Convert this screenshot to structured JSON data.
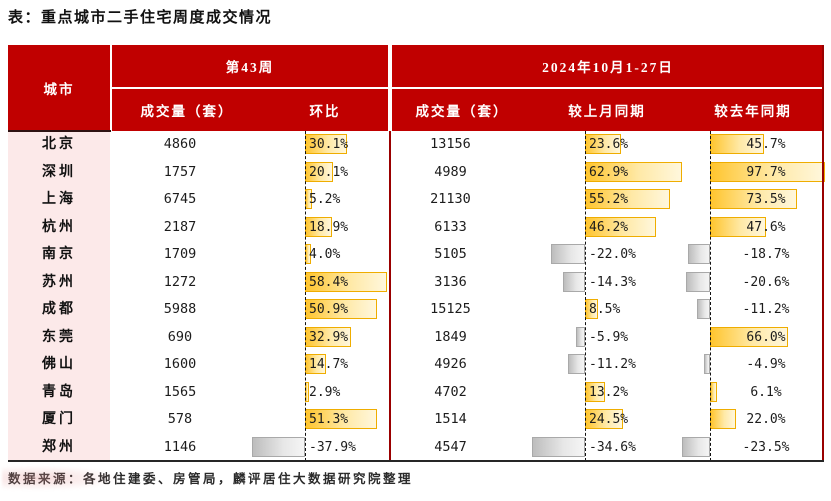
{
  "title": "表：重点城市二手住宅周度成交情况",
  "source_note": "数据来源：各地住建委、房管局，麟评居住大数据研究院整理",
  "header": {
    "city": "城市",
    "week43": "第43周",
    "october": "2024年10月1-27日",
    "w43_volume_label": "成交量（套）",
    "w43_wow_label": "环比",
    "oct_volume_label": "成交量（套）",
    "oct_mom_label": "较上月同期",
    "oct_yoy_label": "较去年同期"
  },
  "colors": {
    "header-red": "#C00000",
    "city-pink": "#FCE9E9",
    "dark-red": "#9A0000",
    "bar-gold": "#FFC52E",
    "bar-gold-border": "#EFAD00",
    "bar-neg-gray": "#BDBDBD"
  },
  "chart_data": {
    "type": "table",
    "title": "表：重点城市二手住宅周度成交情况",
    "column_groups": [
      "城市",
      "第43周",
      "2024年10月1-27日"
    ],
    "columns": [
      "城市",
      "第43周 成交量（套）",
      "第43周 环比",
      "10月1-27日 成交量（套）",
      "较上月同期",
      "较去年同期"
    ],
    "bar_columns_note": "环比/较上月同期/较去年同期 cells contain in-cell data bars: positive = gold gradient, negative = gray gradient, dashed zero axis",
    "rows": [
      {
        "city": "北京",
        "w43_volume": 4860,
        "w43_wow_pct": 30.1,
        "oct_volume": 13156,
        "oct_mom_pct": 23.6,
        "oct_yoy_pct": 45.7
      },
      {
        "city": "深圳",
        "w43_volume": 1757,
        "w43_wow_pct": 20.1,
        "oct_volume": 4989,
        "oct_mom_pct": 62.9,
        "oct_yoy_pct": 97.7
      },
      {
        "city": "上海",
        "w43_volume": 6745,
        "w43_wow_pct": 5.2,
        "oct_volume": 21130,
        "oct_mom_pct": 55.2,
        "oct_yoy_pct": 73.5
      },
      {
        "city": "杭州",
        "w43_volume": 2187,
        "w43_wow_pct": 18.9,
        "oct_volume": 6133,
        "oct_mom_pct": 46.2,
        "oct_yoy_pct": 47.6
      },
      {
        "city": "南京",
        "w43_volume": 1709,
        "w43_wow_pct": 4.0,
        "oct_volume": 5105,
        "oct_mom_pct": -22.0,
        "oct_yoy_pct": -18.7
      },
      {
        "city": "苏州",
        "w43_volume": 1272,
        "w43_wow_pct": 58.4,
        "oct_volume": 3136,
        "oct_mom_pct": -14.3,
        "oct_yoy_pct": -20.6
      },
      {
        "city": "成都",
        "w43_volume": 5988,
        "w43_wow_pct": 50.9,
        "oct_volume": 15125,
        "oct_mom_pct": 8.5,
        "oct_yoy_pct": -11.2
      },
      {
        "city": "东莞",
        "w43_volume": 690,
        "w43_wow_pct": 32.9,
        "oct_volume": 1849,
        "oct_mom_pct": -5.9,
        "oct_yoy_pct": 66.0
      },
      {
        "city": "佛山",
        "w43_volume": 1600,
        "w43_wow_pct": 14.7,
        "oct_volume": 4926,
        "oct_mom_pct": -11.2,
        "oct_yoy_pct": -4.9
      },
      {
        "city": "青岛",
        "w43_volume": 1565,
        "w43_wow_pct": 2.9,
        "oct_volume": 4702,
        "oct_mom_pct": 13.2,
        "oct_yoy_pct": 6.1
      },
      {
        "city": "厦门",
        "w43_volume": 578,
        "w43_wow_pct": 51.3,
        "oct_volume": 1514,
        "oct_mom_pct": 24.5,
        "oct_yoy_pct": 22.0
      },
      {
        "city": "郑州",
        "w43_volume": 1146,
        "w43_wow_pct": -37.9,
        "oct_volume": 4547,
        "oct_mom_pct": -34.6,
        "oct_yoy_pct": -23.5
      }
    ]
  }
}
